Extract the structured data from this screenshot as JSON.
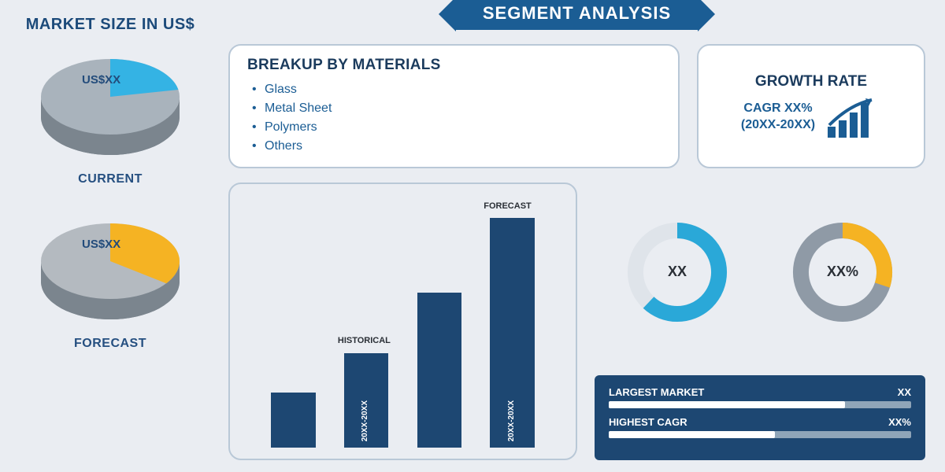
{
  "colors": {
    "bg": "#eaedf2",
    "title": "#1c4a7a",
    "banner_bg": "#1b5d94",
    "banner_text": "#ffffff",
    "card_border": "#b9c8d7",
    "heading": "#1b3b5d",
    "bullet": "#1b5d94",
    "bar_fill": "#1d4772",
    "donut1_primary": "#2aa8d8",
    "donut1_secondary": "#dfe4ea",
    "donut2_primary": "#f5b323",
    "donut2_secondary": "#8f9aa6",
    "barsbox_bg": "#1d4772",
    "barsbox_track": "#8fa5b8",
    "barsbox_fill": "#ffffff",
    "pie1_main": "#a9b3bc",
    "pie1_slice": "#34b3e4",
    "pie2_main": "#b4bac0",
    "pie2_slice": "#f5b323"
  },
  "left": {
    "title": "MARKET SIZE IN US$",
    "pie1": {
      "value_label": "US$XX",
      "caption": "CURRENT",
      "slice_pct": 22
    },
    "pie2": {
      "value_label": "US$XX",
      "caption": "FORECAST",
      "slice_pct": 35
    }
  },
  "banner": "SEGMENT ANALYSIS",
  "breakup": {
    "title": "BREAKUP BY MATERIALS",
    "items": [
      "Glass",
      "Metal Sheet",
      "Polymers",
      "Others"
    ]
  },
  "growth": {
    "title": "GROWTH RATE",
    "line1": "CAGR XX%",
    "line2": "(20XX-20XX)"
  },
  "barchart": {
    "bars": [
      {
        "height_pct": 22,
        "label": ""
      },
      {
        "height_pct": 38,
        "label": "20XX-20XX"
      },
      {
        "height_pct": 62,
        "label": ""
      },
      {
        "height_pct": 92,
        "label": "20XX-20XX"
      }
    ],
    "period_labels": [
      {
        "text": "HISTORICAL",
        "above_bar_index": 1
      },
      {
        "text": "FORECAST",
        "above_bar_index": 3
      }
    ],
    "bar_width_pct": 14,
    "gap_pct": 9
  },
  "donuts": {
    "d1": {
      "center": "XX",
      "pct": 62
    },
    "d2": {
      "center": "XX%",
      "pct": 30
    }
  },
  "barsbox": {
    "rows": [
      {
        "label": "LARGEST MARKET",
        "value": "XX",
        "fill_pct": 78
      },
      {
        "label": "HIGHEST CAGR",
        "value": "XX%",
        "fill_pct": 55
      }
    ]
  }
}
